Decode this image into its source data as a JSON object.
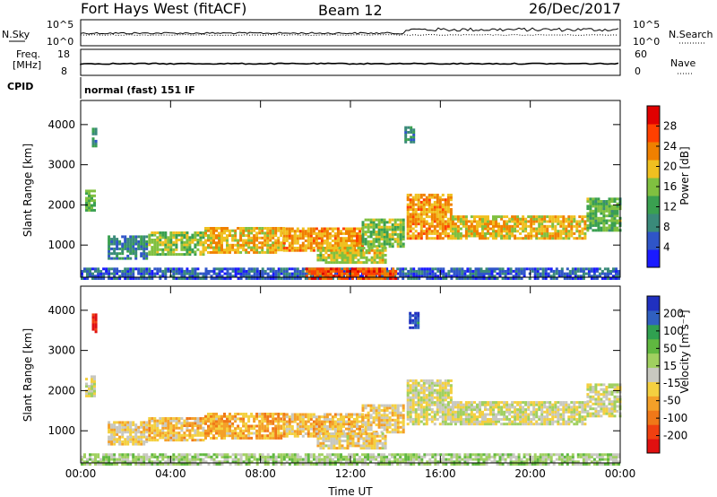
{
  "header": {
    "radar": "Fort Hays West (fitACF)",
    "beam": "Beam 12",
    "date": "26/Dec/2017"
  },
  "strips": {
    "nsky": {
      "label": "N.Sky",
      "ticks_left": [
        "10^5",
        "10^0"
      ],
      "right_label": "N.Search",
      "ticks_right": [
        "10^5",
        "10^0"
      ]
    },
    "freq": {
      "label_top": "Freq.",
      "label_bottom": "[MHz]",
      "ticks_left": [
        "18",
        "8"
      ],
      "right_label": "Nave",
      "ticks_right": [
        "60",
        "0"
      ]
    },
    "cpid": {
      "label": "CPID",
      "text": "normal (fast) 151 IF"
    }
  },
  "colors": {
    "power": [
      "#1a1aff",
      "#2f55c8",
      "#3a8a7a",
      "#3aa050",
      "#80c040",
      "#f0c020",
      "#f08000",
      "#ff4000",
      "#e00000"
    ],
    "velocity": [
      "#e01010",
      "#f04010",
      "#f07818",
      "#f4a028",
      "#f4d040",
      "#c8c8c0",
      "#a0d060",
      "#60b840",
      "#30a050",
      "#3060c0",
      "#2030c0"
    ]
  },
  "chart_data": [
    {
      "type": "heatmap",
      "name": "power",
      "xlabel": "",
      "ylabel": "Slant Range [km]",
      "x_ticks": [
        "00:00",
        "04:00",
        "08:00",
        "12:00",
        "16:00",
        "20:00",
        "00:00"
      ],
      "y_ticks": [
        "1000",
        "2000",
        "3000",
        "4000"
      ],
      "ylim": [
        200,
        4600
      ],
      "colorbar": {
        "label": "Power [dB]",
        "ticks": [
          "4",
          "8",
          "12",
          "16",
          "20",
          "24",
          "28"
        ],
        "range": [
          0,
          32
        ]
      },
      "regions": [
        {
          "t": [
            0.2,
            0.6
          ],
          "r": [
            1900,
            2400
          ],
          "v": 14
        },
        {
          "t": [
            0.5,
            0.7
          ],
          "r": [
            3500,
            3950
          ],
          "v": 10
        },
        {
          "t": [
            1.2,
            3.0
          ],
          "r": [
            700,
            1300
          ],
          "v": 9
        },
        {
          "t": [
            3.0,
            5.5
          ],
          "r": [
            800,
            1400
          ],
          "v": 16
        },
        {
          "t": [
            5.5,
            9.0
          ],
          "r": [
            850,
            1500
          ],
          "v": 20
        },
        {
          "t": [
            9.0,
            12.5
          ],
          "r": [
            900,
            1500
          ],
          "v": 22
        },
        {
          "t": [
            12.5,
            14.3
          ],
          "r": [
            1000,
            1700
          ],
          "v": 15
        },
        {
          "t": [
            10.5,
            13.5
          ],
          "r": [
            600,
            1000
          ],
          "v": 18
        },
        {
          "t": [
            14.4,
            14.8
          ],
          "r": [
            3600,
            4000
          ],
          "v": 10
        },
        {
          "t": [
            14.5,
            16.5
          ],
          "r": [
            1200,
            2300
          ],
          "v": 22
        },
        {
          "t": [
            16.5,
            22.5
          ],
          "r": [
            1200,
            1800
          ],
          "v": 20
        },
        {
          "t": [
            22.5,
            24.0
          ],
          "r": [
            1400,
            2200
          ],
          "v": 14
        },
        {
          "t": [
            0.0,
            24.0
          ],
          "r": [
            200,
            450
          ],
          "v": 6
        },
        {
          "t": [
            10.0,
            14.0
          ],
          "r": [
            200,
            450
          ],
          "v": 26
        }
      ]
    },
    {
      "type": "heatmap",
      "name": "velocity",
      "xlabel": "Time UT",
      "ylabel": "Slant Range [km]",
      "x_ticks": [
        "00:00",
        "04:00",
        "08:00",
        "12:00",
        "16:00",
        "20:00",
        "00:00"
      ],
      "y_ticks": [
        "1000",
        "2000",
        "3000",
        "4000"
      ],
      "ylim": [
        200,
        4600
      ],
      "colorbar": {
        "label": "Velocity [m s⁻¹]",
        "ticks": [
          "200",
          "100",
          "50",
          "15",
          "-15",
          "-50",
          "-100",
          "-200"
        ],
        "range": [
          -250,
          250
        ]
      },
      "regions": [
        {
          "t": [
            0.2,
            0.6
          ],
          "r": [
            1900,
            2400
          ],
          "v": 0
        },
        {
          "t": [
            0.5,
            0.7
          ],
          "r": [
            3500,
            3950
          ],
          "v": -220
        },
        {
          "t": [
            1.2,
            3.0
          ],
          "r": [
            700,
            1300
          ],
          "v": -40
        },
        {
          "t": [
            3.0,
            5.5
          ],
          "r": [
            800,
            1400
          ],
          "v": -60
        },
        {
          "t": [
            5.5,
            9.0
          ],
          "r": [
            850,
            1500
          ],
          "v": -80
        },
        {
          "t": [
            9.0,
            12.5
          ],
          "r": [
            900,
            1500
          ],
          "v": -60
        },
        {
          "t": [
            12.5,
            14.3
          ],
          "r": [
            1000,
            1700
          ],
          "v": -40
        },
        {
          "t": [
            10.5,
            13.5
          ],
          "r": [
            600,
            1000
          ],
          "v": -30
        },
        {
          "t": [
            14.6,
            15.0
          ],
          "r": [
            3600,
            4000
          ],
          "v": 200
        },
        {
          "t": [
            14.5,
            16.5
          ],
          "r": [
            1200,
            2300
          ],
          "v": 0
        },
        {
          "t": [
            16.5,
            22.5
          ],
          "r": [
            1200,
            1800
          ],
          "v": 0
        },
        {
          "t": [
            22.5,
            24.0
          ],
          "r": [
            1400,
            2200
          ],
          "v": 0
        },
        {
          "t": [
            0.0,
            24.0
          ],
          "r": [
            200,
            450
          ],
          "v": 40
        }
      ]
    }
  ]
}
